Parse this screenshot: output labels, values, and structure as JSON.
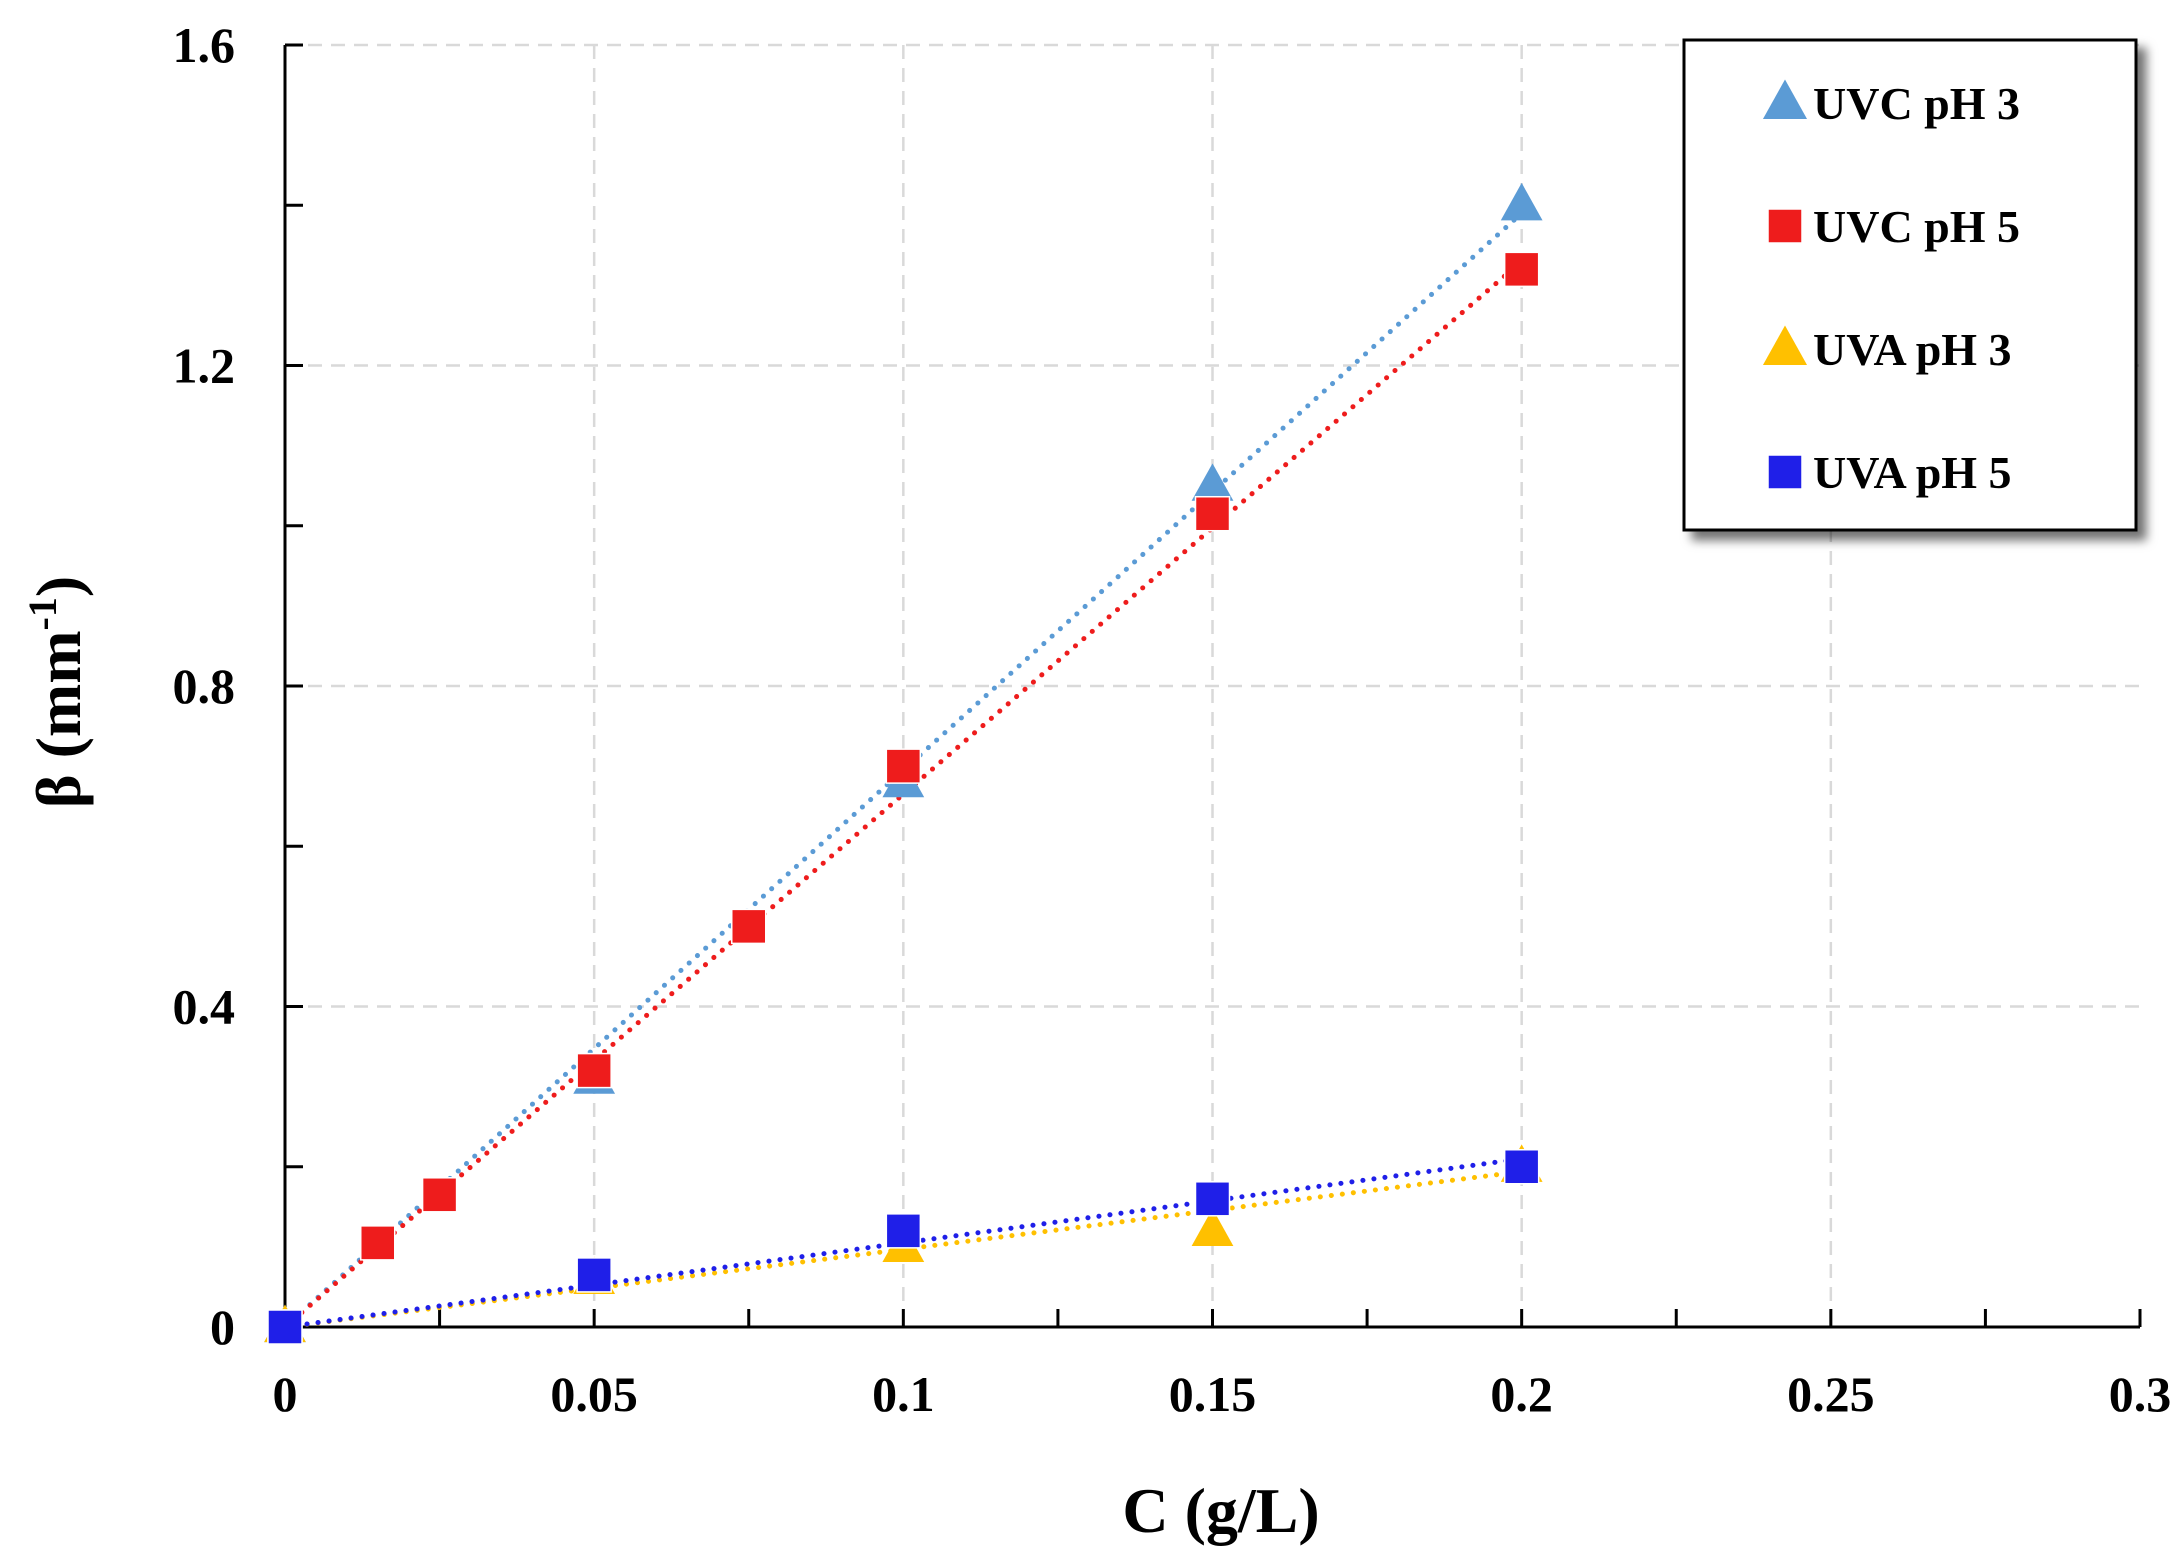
{
  "chart_data": {
    "type": "scatter",
    "title": "",
    "xlabel": "C (g/L)",
    "ylabel_base": "β (mm",
    "ylabel_sup": "-1",
    "ylabel_close": ")",
    "xlim": [
      0,
      0.3
    ],
    "ylim": [
      0,
      1.6
    ],
    "x_ticks": [
      0,
      0.05,
      0.1,
      0.15,
      0.2,
      0.25,
      0.3
    ],
    "x_tick_labels": [
      "0",
      "0.05",
      "0.1",
      "0.15",
      "0.2",
      "0.25",
      "0.3"
    ],
    "y_ticks": [
      0,
      0.4,
      0.8,
      1.2,
      1.6
    ],
    "y_tick_labels": [
      "0",
      "0.4",
      "0.8",
      "1.2",
      "1.6"
    ],
    "grid": true,
    "legend_position": "top-right",
    "series": [
      {
        "name": "UVC pH 3",
        "marker": "triangle",
        "color": "#5B9BD5",
        "x": [
          0,
          0.05,
          0.1,
          0.15,
          0.2
        ],
        "y": [
          0,
          0.31,
          0.68,
          1.05,
          1.4
        ],
        "trendline": {
          "style": "dotted",
          "slope": 6.95,
          "intercept": 0
        }
      },
      {
        "name": "UVC pH 5",
        "marker": "square",
        "color": "#EE1C1C",
        "x": [
          0,
          0.015,
          0.025,
          0.05,
          0.075,
          0.1,
          0.15,
          0.2
        ],
        "y": [
          0,
          0.105,
          0.165,
          0.32,
          0.5,
          0.7,
          1.015,
          1.32
        ],
        "trendline": {
          "style": "dotted",
          "slope": 6.65,
          "intercept": 0
        }
      },
      {
        "name": "UVA pH 3",
        "marker": "triangle",
        "color": "#FFC000",
        "x": [
          0,
          0.05,
          0.1,
          0.15,
          0.2
        ],
        "y": [
          0,
          0.06,
          0.1,
          0.12,
          0.2
        ],
        "trendline": {
          "style": "dotted",
          "slope": 0.97,
          "intercept": 0
        }
      },
      {
        "name": "UVA pH 5",
        "marker": "square",
        "color": "#1F1FE8",
        "x": [
          0,
          0.05,
          0.1,
          0.15,
          0.2
        ],
        "y": [
          0,
          0.065,
          0.12,
          0.16,
          0.2
        ],
        "trendline": {
          "style": "dotted",
          "slope": 1.05,
          "intercept": 0
        }
      }
    ]
  }
}
